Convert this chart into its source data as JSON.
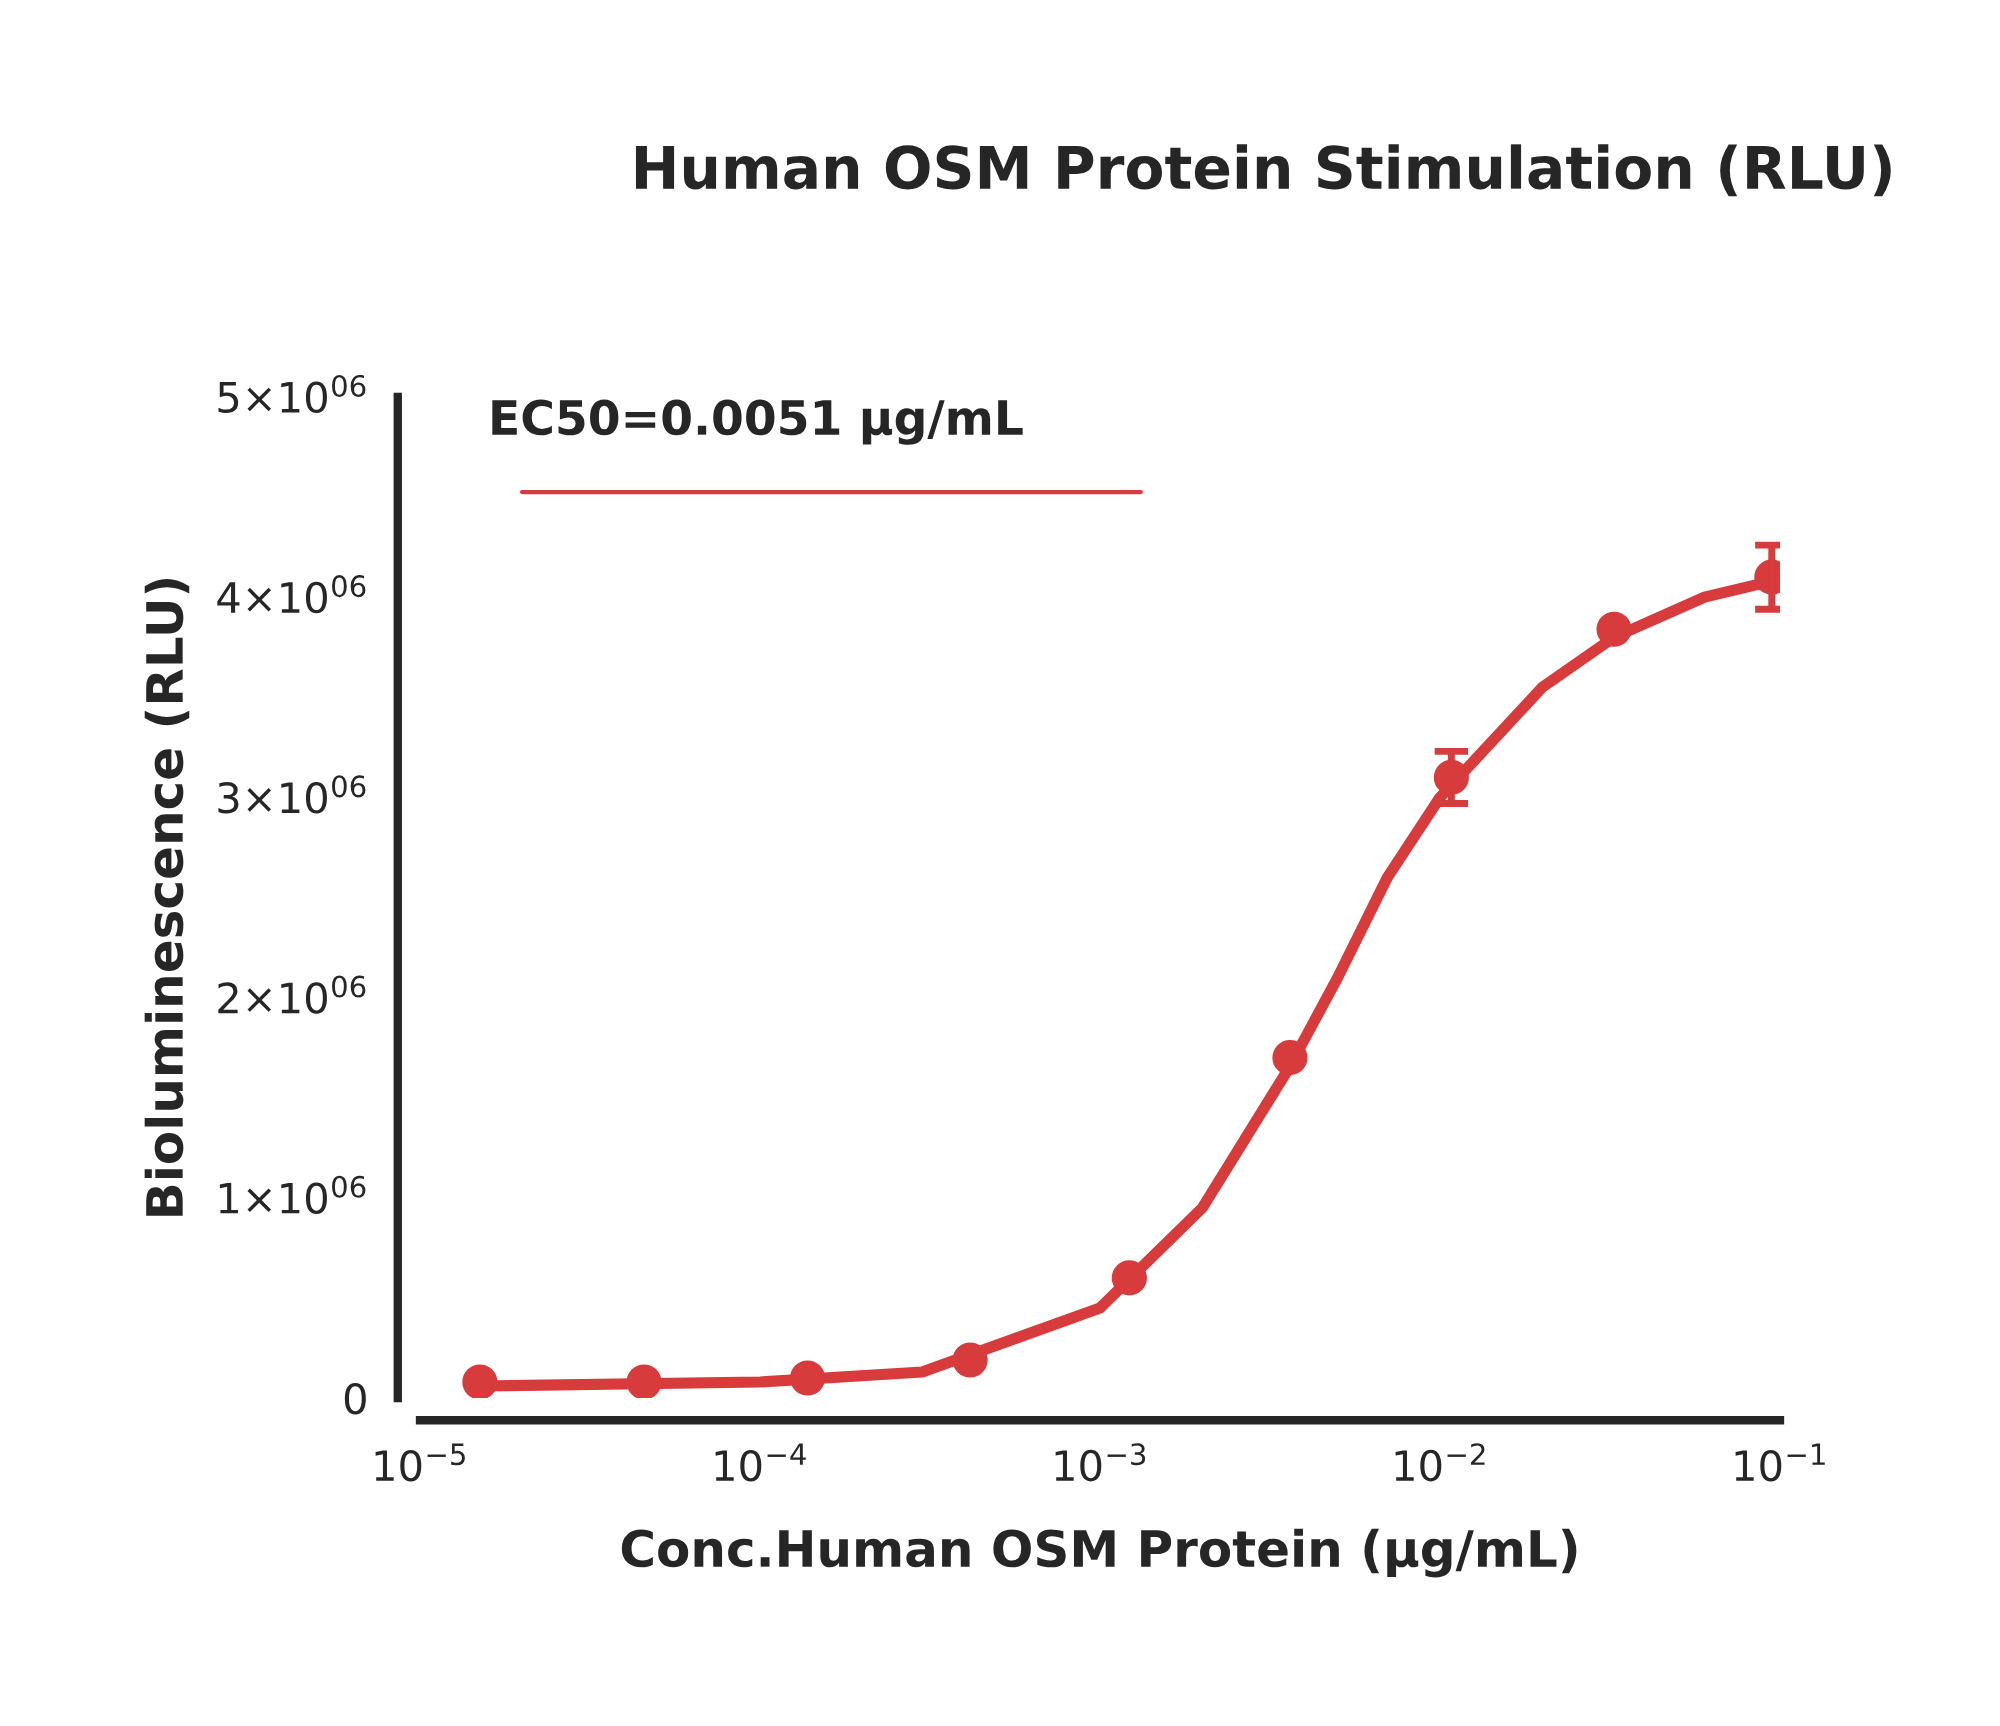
{
  "chart_data": {
    "type": "scatter",
    "title": "Human OSM Protein Stimulation (RLU)",
    "xlabel": "Conc.Human OSM Protein (μg/mL)",
    "ylabel": "Bioluminescence (RLU)",
    "log": "x",
    "grid": false,
    "xlim": [
      1e-05,
      0.1
    ],
    "ylim": [
      0,
      5000000
    ],
    "xticks": [
      {
        "value": 1e-05,
        "label": "10$^{−5}$"
      },
      {
        "value": 0.0001,
        "label": "10$^{−4}$"
      },
      {
        "value": 0.001,
        "label": "10$^{−3}$"
      },
      {
        "value": 0.01,
        "label": "10$^{−2}$"
      },
      {
        "value": 0.1,
        "label": "10$^{−1}$"
      }
    ],
    "yticks": [
      {
        "value": 0,
        "label": "0"
      },
      {
        "value": 1000000,
        "label": "1×10$^{06}$"
      },
      {
        "value": 2000000,
        "label": "2×10$^{06}$"
      },
      {
        "value": 3000000,
        "label": "3×10$^{06}$"
      },
      {
        "value": 4000000,
        "label": "4×10$^{06}$"
      },
      {
        "value": 5000000,
        "label": "5×10$^{06}$"
      }
    ],
    "annotations": [
      "EC50=0.0051 μg/mL"
    ],
    "series": [
      {
        "marker": "circle",
        "color": "#d83b3b",
        "x": [
          1.5e-05,
          4.56e-05,
          0.000138,
          0.000415,
          0.00122,
          0.00362,
          0.0108,
          0.0325,
          0.0946
        ],
        "values": [
          80000,
          80000,
          100000,
          190000,
          600000,
          1700000,
          3100000,
          3840000,
          4100000
        ],
        "errors": [
          null,
          null,
          null,
          null,
          null,
          null,
          130000,
          null,
          160000
        ]
      },
      {
        "type": "line",
        "marker": "none",
        "color": "#d83b3b",
        "x": [
          1.5e-05,
          0.0001,
          0.0003,
          0.001,
          0.002,
          0.0036,
          0.005,
          0.007,
          0.01,
          0.02,
          0.0325,
          0.06,
          0.0946
        ],
        "values": [
          60000,
          80000,
          130000,
          450000,
          950000,
          1650000,
          2100000,
          2600000,
          3000000,
          3550000,
          3800000,
          4000000,
          4080000
        ]
      }
    ]
  }
}
